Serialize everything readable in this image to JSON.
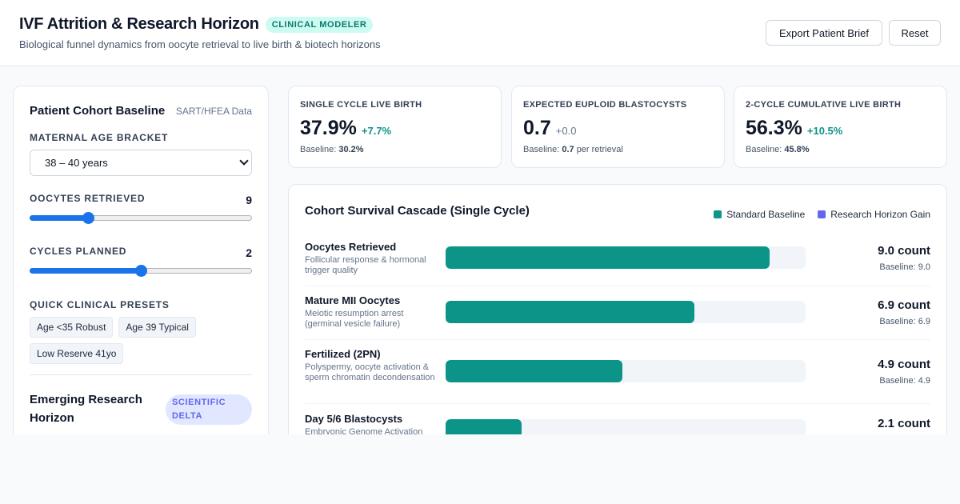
{
  "header": {
    "title": "IVF Attrition & Research Horizon",
    "badge": "CLINICAL MODELER",
    "subtitle": "Biological funnel dynamics from oocyte retrieval to live birth & biotech horizons",
    "export_label": "Export Patient Brief",
    "reset_label": "Reset"
  },
  "sidebar": {
    "title": "Patient Cohort Baseline",
    "source": "SART/HFEA Data",
    "age_label": "MATERNAL AGE BRACKET",
    "age_value": "38 – 40 years",
    "oocytes_label": "OOCYTES RETRIEVED",
    "oocytes_value": "9",
    "oocytes_fraction": 0.25,
    "cycles_label": "CYCLES PLANNED",
    "cycles_value": "2",
    "cycles_fraction": 0.5,
    "presets_label": "QUICK CLINICAL PRESETS",
    "presets": [
      "Age <35 Robust",
      "Age 39 Typical",
      "Low Reserve 41yo"
    ],
    "research_title": "Emerging Research Horizon",
    "research_badge": "SCIENTIFIC DELTA"
  },
  "metrics": [
    {
      "label": "SINGLE CYCLE LIVE BIRTH",
      "value": "37.9%",
      "delta": "+7.7%",
      "baseline_prefix": "Baseline:",
      "baseline": "30.2%",
      "baseline_suffix": ""
    },
    {
      "label": "EXPECTED EUPLOID BLASTOCYSTS",
      "value": "0.7",
      "delta": "+0.0",
      "baseline_prefix": "Baseline:",
      "baseline": "0.7",
      "baseline_suffix": "per retrieval"
    },
    {
      "label": "2-CYCLE CUMULATIVE LIVE BIRTH",
      "value": "56.3%",
      "delta": "+10.5%",
      "baseline_prefix": "Baseline:",
      "baseline": "45.8%",
      "baseline_suffix": ""
    }
  ],
  "cascade": {
    "title": "Cohort Survival Cascade (Single Cycle)",
    "legend": [
      {
        "label": "Standard Baseline",
        "color": "#0d9488"
      },
      {
        "label": "Research Horizon Gain",
        "color": "#6366f1"
      }
    ],
    "stages": [
      {
        "name": "Oocytes Retrieved",
        "desc": "Follicular response & hormonal trigger quality",
        "value": "9.0 count",
        "baseline": "Baseline: 9.0",
        "baseline_count": 9.0,
        "gain_count": 0
      },
      {
        "name": "Mature MII Oocytes",
        "desc": "Meiotic resumption arrest (germinal vesicle failure)",
        "value": "6.9 count",
        "baseline": "Baseline: 6.9",
        "baseline_count": 6.9,
        "gain_count": 0
      },
      {
        "name": "Fertilized (2PN)",
        "desc": "Polyspermy, oocyte activation & sperm chromatin decondensation",
        "value": "4.9 count",
        "baseline": "Baseline: 4.9",
        "baseline_count": 4.9,
        "gain_count": 0
      },
      {
        "name": "Day 5/6 Blastocysts",
        "desc": "Embryonic Genome Activation",
        "value": "2.1 count",
        "baseline": "",
        "baseline_count": 2.1,
        "gain_count": 0
      }
    ],
    "scale_max": 100
  }
}
